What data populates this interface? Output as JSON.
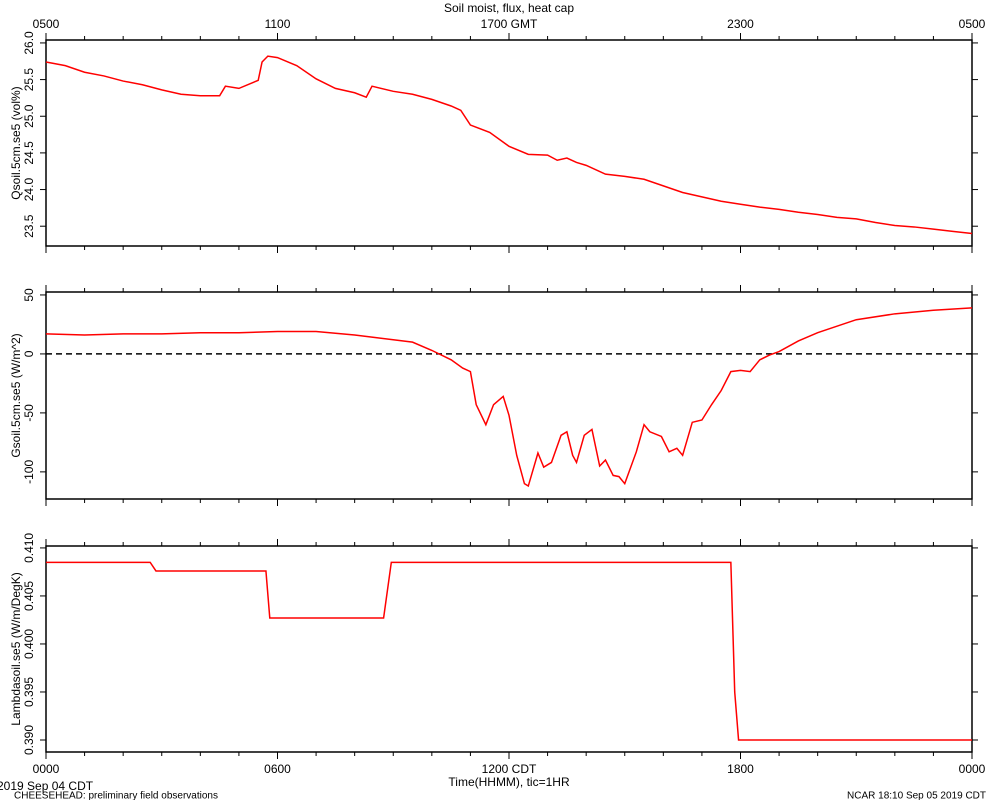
{
  "footer": {
    "date": "2019 Sep 04 CDT",
    "note": "CHEESEHEAD: preliminary field observations",
    "stamp": "NCAR 18:10 Sep 05 2019 CDT"
  },
  "minor_xticks": [
    1,
    2,
    3,
    4,
    5,
    7,
    8,
    9,
    10,
    11,
    13,
    14,
    15,
    16,
    17,
    19,
    20,
    21,
    22,
    23
  ],
  "chart_data": [
    {
      "type": "line",
      "title": "Soil moist, flux, heat cap",
      "ylabel": "Qsoil.5cm.se5 (vol%)",
      "xlim": [
        0,
        24
      ],
      "x2ticks": [
        {
          "value": 0,
          "label": "0500"
        },
        {
          "value": 6,
          "label": "1100"
        },
        {
          "value": 12,
          "label": "1700 GMT"
        },
        {
          "value": 18,
          "label": "2300"
        },
        {
          "value": 24,
          "label": "0500"
        }
      ],
      "ylim": [
        23.23,
        26.04
      ],
      "yticks": [
        23.5,
        {
          "value": 24,
          "label": "24.0"
        },
        24.5,
        {
          "value": 25,
          "label": "25.0"
        },
        25.5,
        {
          "value": 26,
          "label": "26.0"
        }
      ],
      "x": [
        0,
        0.5,
        1,
        1.5,
        2,
        2.5,
        3,
        3.5,
        4,
        4.5,
        4.65,
        5,
        5.5,
        5.6,
        5.75,
        6,
        6.5,
        7,
        7.5,
        8,
        8.3,
        8.45,
        9,
        9.5,
        10,
        10.5,
        10.75,
        11,
        11.5,
        12,
        12.5,
        13,
        13.25,
        13.5,
        13.75,
        14,
        14.5,
        15,
        15.5,
        16,
        16.5,
        17,
        17.5,
        18,
        18.5,
        19,
        19.5,
        20,
        20.5,
        21,
        21.5,
        22,
        22.5,
        23,
        23.5,
        24
      ],
      "series": [
        {
          "color": "#ff0000",
          "values": [
            25.74,
            25.69,
            25.6,
            25.55,
            25.48,
            25.43,
            25.36,
            25.3,
            25.28,
            25.28,
            25.41,
            25.38,
            25.49,
            25.74,
            25.82,
            25.8,
            25.69,
            25.51,
            25.38,
            25.32,
            25.26,
            25.41,
            25.34,
            25.3,
            25.23,
            25.14,
            25.08,
            24.88,
            24.78,
            24.59,
            24.48,
            24.47,
            24.4,
            24.43,
            24.37,
            24.33,
            24.21,
            24.18,
            24.14,
            24.05,
            23.96,
            23.9,
            23.84,
            23.8,
            23.76,
            23.73,
            23.69,
            23.66,
            23.62,
            23.6,
            23.55,
            23.51,
            23.49,
            23.46,
            23.43,
            23.4
          ]
        }
      ]
    },
    {
      "type": "line",
      "ylabel": "Gsoil.5cm.se5 (W/m^2)",
      "zero_line": true,
      "xlim": [
        0,
        24
      ],
      "ylim": [
        -123,
        52.5
      ],
      "yticks": [
        -100,
        -50,
        0,
        50
      ],
      "x": [
        0,
        1,
        2,
        3,
        4,
        5,
        6,
        7,
        8,
        8.5,
        9,
        9.5,
        10,
        10.5,
        10.8,
        11,
        11.15,
        11.4,
        11.6,
        11.85,
        12,
        12.2,
        12.4,
        12.5,
        12.75,
        12.9,
        13.1,
        13.35,
        13.5,
        13.65,
        13.75,
        13.95,
        14.15,
        14.35,
        14.5,
        14.7,
        14.85,
        15,
        15.3,
        15.5,
        15.65,
        15.95,
        16.15,
        16.35,
        16.5,
        16.75,
        17,
        17.25,
        17.5,
        17.75,
        18,
        18.25,
        18.5,
        18.75,
        19,
        19.5,
        20,
        21,
        22,
        23,
        24
      ],
      "series": [
        {
          "color": "#ff0000",
          "values": [
            17,
            16,
            17,
            17,
            18,
            18,
            19,
            19,
            16,
            14,
            12,
            10,
            3,
            -5,
            -12,
            -15,
            -43,
            -60,
            -43,
            -36,
            -52,
            -86,
            -110,
            -112,
            -84,
            -96,
            -92,
            -69,
            -66,
            -86,
            -92,
            -69,
            -64,
            -95,
            -90,
            -103,
            -104,
            -110,
            -83,
            -60,
            -66,
            -70,
            -83,
            -80,
            -86,
            -58,
            -56,
            -43,
            -31,
            -15,
            -14,
            -15,
            -5,
            -1,
            2,
            11,
            18,
            29,
            34,
            37,
            39
          ]
        }
      ]
    },
    {
      "type": "line",
      "ylabel": "Lambdasoil.se5 (W/m/DegK)",
      "xlabel": "Time(HHMM), tic=1HR",
      "xlim": [
        0,
        24
      ],
      "xticks": [
        {
          "value": 0,
          "label": "0000"
        },
        {
          "value": 6,
          "label": "0600"
        },
        {
          "value": 12,
          "label": "1200 CDT"
        },
        {
          "value": 18,
          "label": "1800"
        },
        {
          "value": 24,
          "label": "0000"
        }
      ],
      "ylim": [
        0.38875,
        0.4102
      ],
      "yticks": [
        {
          "value": 0.39,
          "label": "0.390"
        },
        0.395,
        {
          "value": 0.4,
          "label": "0.400"
        },
        0.405,
        {
          "value": 0.41,
          "label": "0.410"
        }
      ],
      "x": [
        0,
        2.7,
        2.85,
        5.7,
        5.8,
        8.75,
        8.95,
        17.75,
        17.85,
        17.95,
        24
      ],
      "series": [
        {
          "color": "#ff0000",
          "values": [
            0.4085,
            0.4085,
            0.4076,
            0.4076,
            0.4027,
            0.4027,
            0.4085,
            0.4085,
            0.395,
            0.39,
            0.39
          ]
        }
      ]
    }
  ]
}
